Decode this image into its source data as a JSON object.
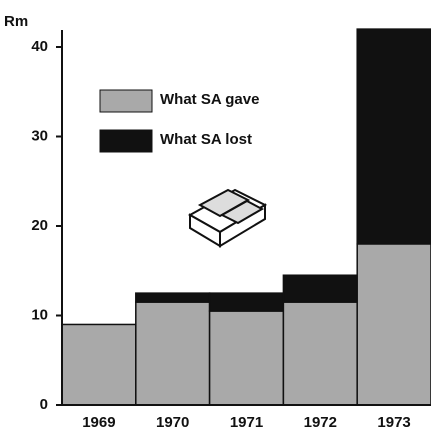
{
  "chart_data": {
    "type": "bar",
    "stacked": true,
    "y_label": "Rm",
    "categories": [
      "1969",
      "1970",
      "1971",
      "1972",
      "1973"
    ],
    "series": [
      {
        "name": "What SA gave",
        "color": "#a9a9a9",
        "values": [
          9,
          11.5,
          10.5,
          11.5,
          18
        ]
      },
      {
        "name": "What SA lost",
        "color": "#111111",
        "values": [
          0,
          1,
          2,
          3,
          24
        ]
      }
    ],
    "ylim": [
      0,
      40
    ],
    "yticks": [
      0,
      10,
      20,
      30,
      40
    ],
    "grid": false,
    "legend": "upper left"
  }
}
